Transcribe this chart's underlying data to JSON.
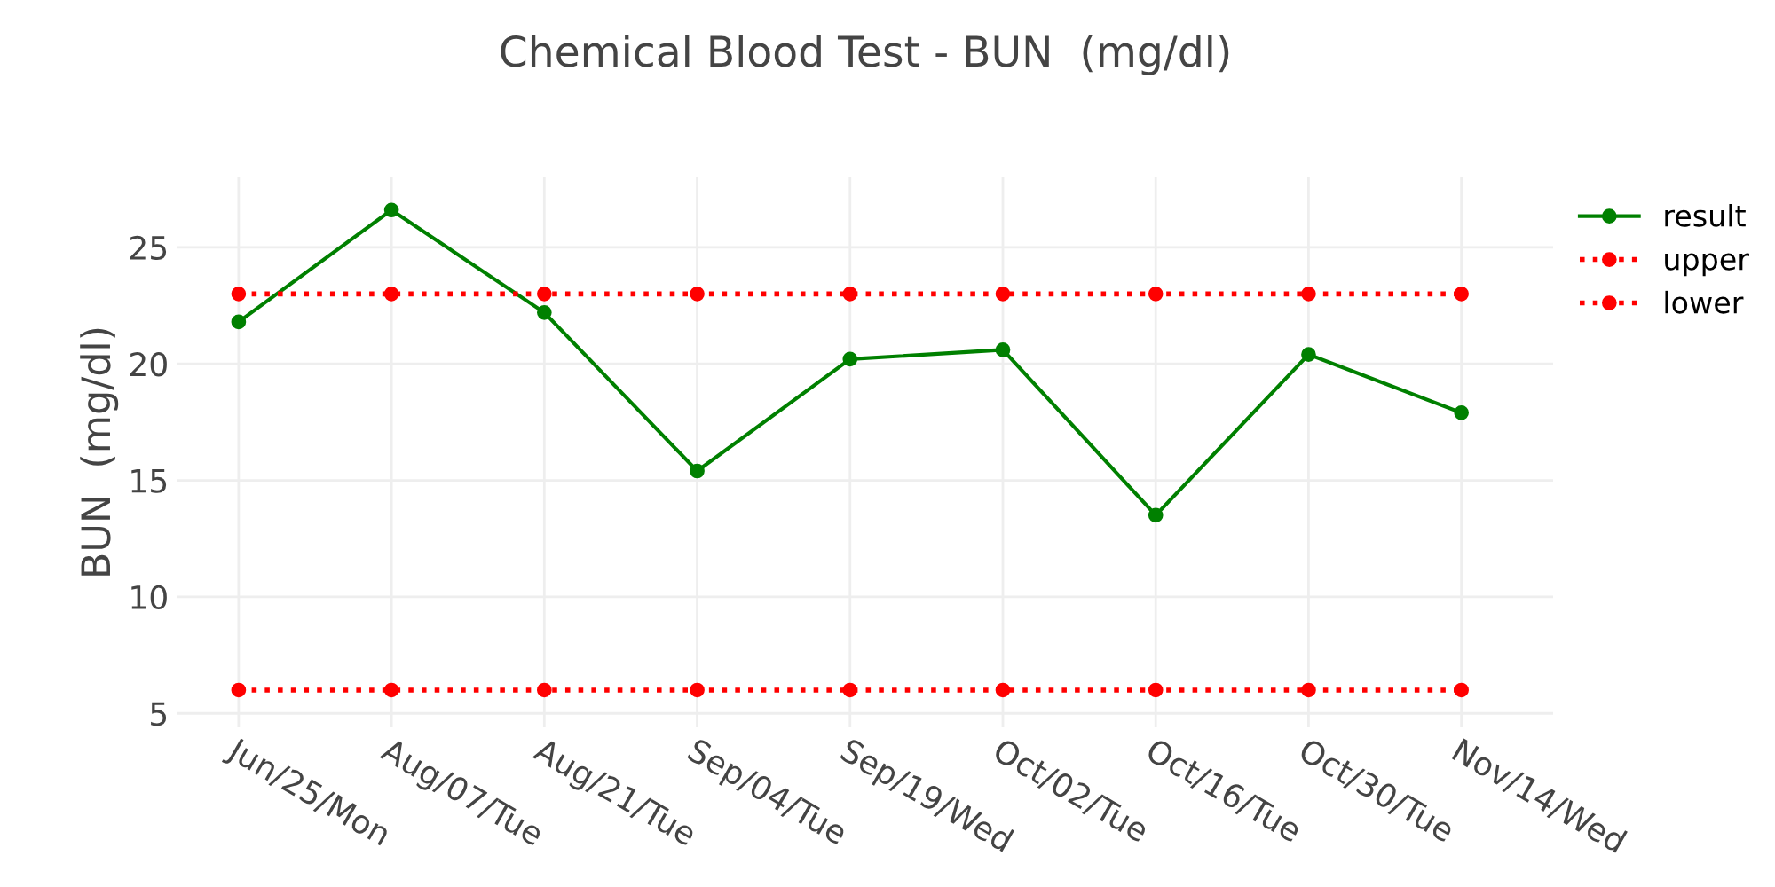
{
  "chart_data": {
    "type": "line",
    "title": "Chemical Blood Test - BUN  (mg/dl)",
    "ylabel": "BUN  (mg/dl)",
    "categories": [
      "Jun/25/Mon",
      "Aug/07/Tue",
      "Aug/21/Tue",
      "Sep/04/Tue",
      "Sep/19/Wed",
      "Oct/02/Tue",
      "Oct/16/Tue",
      "Oct/30/Tue",
      "Nov/14/Wed"
    ],
    "series": [
      {
        "name": "result",
        "color": "#008000",
        "line_style": "solid",
        "values": [
          21.8,
          26.6,
          22.2,
          15.4,
          20.2,
          20.6,
          13.5,
          20.4,
          17.9
        ]
      },
      {
        "name": "upper",
        "color": "#ff0000",
        "line_style": "dotted",
        "values": [
          23,
          23,
          23,
          23,
          23,
          23,
          23,
          23,
          23
        ]
      },
      {
        "name": "lower",
        "color": "#ff0000",
        "line_style": "dotted",
        "values": [
          6,
          6,
          6,
          6,
          6,
          6,
          6,
          6,
          6
        ]
      }
    ],
    "ylim": [
      4.4,
      28
    ],
    "yticks": [
      5,
      10,
      15,
      20,
      25
    ],
    "grid": true,
    "legend": "top right",
    "marker": "circle"
  }
}
